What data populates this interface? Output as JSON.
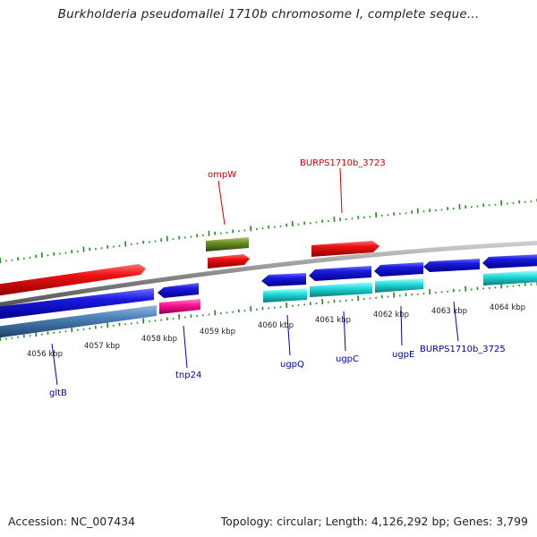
{
  "header": {
    "title": "Burkholderia pseudomallei 1710b chromosome I, complete seque..."
  },
  "footer": {
    "accession": "Accession: NC_007434",
    "summary": "Topology: circular; Length: 4,126,292 bp; Genes: 3,799"
  },
  "scale": {
    "ticks": [
      "4056 kbp",
      "4057 kbp",
      "4058 kbp",
      "4059 kbp",
      "4060 kbp",
      "4061 kbp",
      "4062 kbp",
      "4063 kbp",
      "4064 kbp"
    ]
  },
  "genes": {
    "forward": [
      "ompW",
      "BURPS1710b_3723"
    ],
    "reverse": [
      "gltB",
      "tnp24",
      "ugpQ",
      "ugpC",
      "ugpE",
      "BURPS1710b_3725"
    ]
  },
  "colors": {
    "forward_gene": "#ee1111",
    "forward_rna": "#6b8e23",
    "reverse_gene": "#1111dd",
    "reverse_feature_cyan": "#22dddd",
    "reverse_feature_steel": "#4a7fb5",
    "reverse_feature_pink": "#ff1493",
    "backbone": "#888888",
    "gc_skew": "#228b22",
    "label_forward": "#cc0000",
    "label_reverse": "#0000aa"
  }
}
